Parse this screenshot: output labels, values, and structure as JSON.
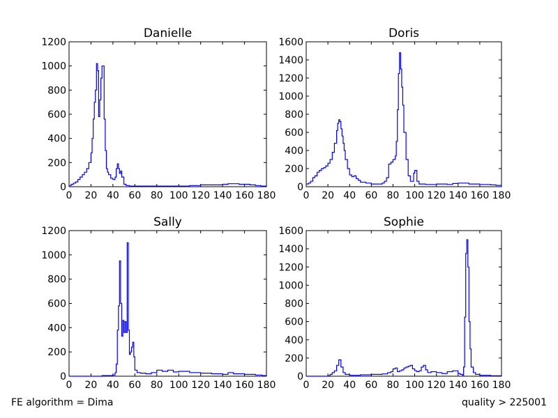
{
  "footer": {
    "left_text": "FE algorithm = Dima",
    "right_text": "quality > 225001"
  },
  "colors": {
    "line": "#0000ff",
    "axes": "#000000",
    "background": "#ffffff"
  },
  "chart_data": [
    {
      "type": "line",
      "title": "Danielle",
      "xlabel": "",
      "ylabel": "",
      "xlim": [
        0,
        180
      ],
      "ylim": [
        0,
        1200
      ],
      "xticks": [
        0,
        20,
        40,
        60,
        80,
        100,
        120,
        140,
        160,
        180
      ],
      "yticks": [
        0,
        200,
        400,
        600,
        800,
        1000,
        1200
      ],
      "grid": false,
      "series": [
        {
          "step": true,
          "x": [
            0,
            2,
            4,
            6,
            8,
            10,
            12,
            14,
            16,
            18,
            20,
            21,
            22,
            23,
            24,
            25,
            26,
            27,
            28,
            29,
            30,
            31,
            32,
            33,
            34,
            35,
            36,
            38,
            40,
            42,
            43,
            44,
            45,
            46,
            47,
            48,
            50,
            52,
            55,
            60,
            70,
            80,
            90,
            100,
            110,
            120,
            130,
            140,
            145,
            150,
            155,
            160,
            165,
            170,
            175,
            180
          ],
          "y": [
            10,
            20,
            30,
            40,
            60,
            80,
            100,
            120,
            150,
            200,
            280,
            400,
            560,
            700,
            800,
            1020,
            960,
            580,
            720,
            900,
            1000,
            1000,
            560,
            300,
            150,
            120,
            100,
            70,
            60,
            80,
            150,
            190,
            150,
            110,
            130,
            80,
            20,
            10,
            5,
            5,
            5,
            5,
            5,
            5,
            10,
            15,
            15,
            20,
            25,
            25,
            20,
            20,
            15,
            10,
            5,
            0
          ]
        }
      ]
    },
    {
      "type": "line",
      "title": "Doris",
      "xlabel": "",
      "ylabel": "",
      "xlim": [
        0,
        180
      ],
      "ylim": [
        0,
        1600
      ],
      "xticks": [
        0,
        20,
        40,
        60,
        80,
        100,
        120,
        140,
        160,
        180
      ],
      "yticks": [
        0,
        200,
        400,
        600,
        800,
        1000,
        1200,
        1400,
        1600
      ],
      "grid": false,
      "series": [
        {
          "step": true,
          "x": [
            0,
            2,
            4,
            6,
            8,
            10,
            12,
            14,
            16,
            18,
            20,
            22,
            24,
            26,
            28,
            29,
            30,
            31,
            32,
            33,
            34,
            35,
            36,
            38,
            40,
            42,
            44,
            46,
            48,
            50,
            55,
            60,
            65,
            70,
            72,
            74,
            76,
            78,
            80,
            82,
            83,
            84,
            85,
            86,
            87,
            88,
            89,
            90,
            92,
            94,
            96,
            98,
            99,
            100,
            102,
            104,
            110,
            120,
            130,
            135,
            140,
            150,
            160,
            170,
            175,
            180
          ],
          "y": [
            30,
            40,
            60,
            100,
            120,
            160,
            180,
            200,
            210,
            230,
            260,
            300,
            380,
            480,
            620,
            700,
            740,
            720,
            640,
            560,
            480,
            400,
            300,
            200,
            130,
            110,
            120,
            90,
            70,
            50,
            40,
            30,
            30,
            40,
            60,
            100,
            250,
            270,
            300,
            340,
            500,
            850,
            1250,
            1480,
            1300,
            1100,
            900,
            600,
            300,
            120,
            60,
            60,
            150,
            180,
            60,
            30,
            25,
            30,
            25,
            35,
            40,
            30,
            25,
            20,
            15,
            0
          ]
        }
      ]
    },
    {
      "type": "line",
      "title": "Sally",
      "xlabel": "",
      "ylabel": "",
      "xlim": [
        0,
        180
      ],
      "ylim": [
        0,
        1200
      ],
      "xticks": [
        0,
        20,
        40,
        60,
        80,
        100,
        120,
        140,
        160,
        180
      ],
      "yticks": [
        0,
        200,
        400,
        600,
        800,
        1000,
        1200
      ],
      "grid": false,
      "series": [
        {
          "step": true,
          "x": [
            0,
            15,
            30,
            40,
            42,
            43,
            44,
            45,
            46,
            47,
            48,
            49,
            50,
            51,
            52,
            53,
            54,
            55,
            56,
            57,
            58,
            59,
            60,
            62,
            65,
            70,
            75,
            80,
            85,
            90,
            95,
            100,
            110,
            120,
            130,
            140,
            145,
            150,
            160,
            170,
            176,
            180
          ],
          "y": [
            0,
            0,
            5,
            10,
            30,
            100,
            380,
            580,
            950,
            600,
            330,
            460,
            360,
            450,
            360,
            1100,
            380,
            180,
            200,
            240,
            280,
            160,
            50,
            30,
            25,
            20,
            30,
            50,
            40,
            50,
            35,
            40,
            30,
            25,
            20,
            15,
            30,
            20,
            15,
            10,
            5,
            0
          ]
        }
      ]
    },
    {
      "type": "line",
      "title": "Sophie",
      "xlabel": "",
      "ylabel": "",
      "xlim": [
        0,
        180
      ],
      "ylim": [
        0,
        1600
      ],
      "xticks": [
        0,
        20,
        40,
        60,
        80,
        100,
        120,
        140,
        160,
        180
      ],
      "yticks": [
        0,
        200,
        400,
        600,
        800,
        1000,
        1200,
        1400,
        1600
      ],
      "grid": false,
      "series": [
        {
          "step": true,
          "x": [
            0,
            15,
            20,
            22,
            24,
            26,
            28,
            30,
            32,
            34,
            36,
            40,
            50,
            60,
            70,
            75,
            78,
            80,
            82,
            84,
            86,
            88,
            90,
            92,
            94,
            96,
            98,
            100,
            102,
            104,
            106,
            108,
            110,
            112,
            115,
            120,
            125,
            130,
            135,
            140,
            142,
            144,
            145,
            146,
            147,
            148,
            149,
            150,
            151,
            152,
            154,
            156,
            160,
            170,
            180
          ],
          "y": [
            0,
            0,
            5,
            20,
            40,
            60,
            120,
            180,
            100,
            40,
            20,
            10,
            15,
            20,
            25,
            40,
            50,
            80,
            90,
            50,
            60,
            70,
            90,
            100,
            110,
            120,
            80,
            60,
            50,
            60,
            100,
            120,
            70,
            40,
            50,
            40,
            30,
            50,
            60,
            30,
            20,
            10,
            100,
            650,
            1350,
            1500,
            1200,
            600,
            300,
            100,
            40,
            20,
            10,
            5,
            0
          ]
        }
      ]
    }
  ]
}
